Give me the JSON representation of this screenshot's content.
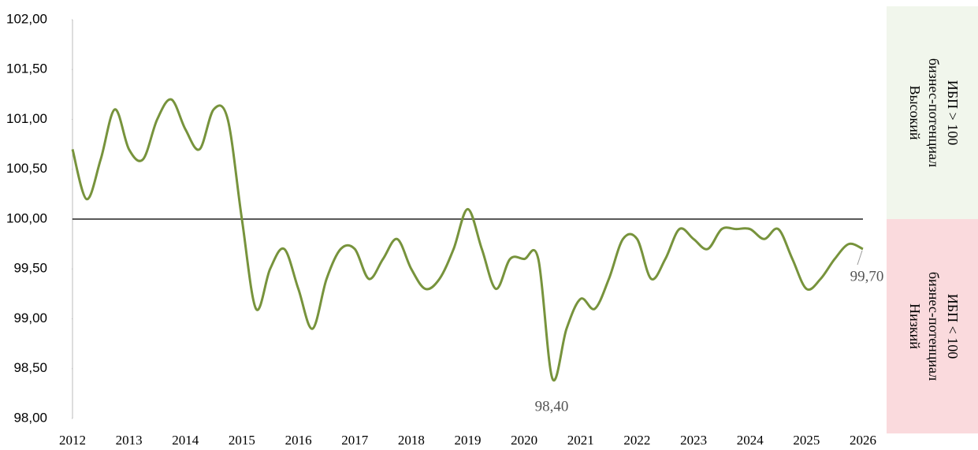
{
  "chart_data": {
    "type": "line",
    "x": [
      2012,
      2012.25,
      2012.5,
      2012.75,
      2013,
      2013.25,
      2013.5,
      2013.75,
      2014,
      2014.25,
      2014.5,
      2014.75,
      2015,
      2015.25,
      2015.5,
      2015.75,
      2016,
      2016.25,
      2016.5,
      2016.75,
      2017,
      2017.25,
      2017.5,
      2017.75,
      2018,
      2018.25,
      2018.5,
      2018.75,
      2019,
      2019.25,
      2019.5,
      2019.75,
      2020,
      2020.25,
      2020.5,
      2020.75,
      2021,
      2021.25,
      2021.5,
      2021.75,
      2022,
      2022.25,
      2022.5,
      2022.75,
      2023,
      2023.25,
      2023.5,
      2023.75,
      2024,
      2024.25,
      2024.5,
      2024.75,
      2025,
      2025.25,
      2025.5,
      2025.75,
      2026
    ],
    "values": [
      100.7,
      100.2,
      100.6,
      101.1,
      100.7,
      100.6,
      101.0,
      101.2,
      100.9,
      100.7,
      101.1,
      101.0,
      100.0,
      99.1,
      99.5,
      99.7,
      99.3,
      98.9,
      99.4,
      99.7,
      99.7,
      99.4,
      99.6,
      99.8,
      99.5,
      99.3,
      99.4,
      99.7,
      100.1,
      99.7,
      99.3,
      99.6,
      99.6,
      99.6,
      98.4,
      98.9,
      99.2,
      99.1,
      99.4,
      99.8,
      99.8,
      99.4,
      99.6,
      99.9,
      99.8,
      99.7,
      99.9,
      99.9,
      99.9,
      99.8,
      99.9,
      99.6,
      99.3,
      99.4,
      99.6,
      99.75,
      99.7
    ],
    "color": "#77933c",
    "xlim": [
      2012,
      2026
    ],
    "xticks": [
      2012,
      2013,
      2014,
      2015,
      2016,
      2017,
      2018,
      2019,
      2020,
      2021,
      2022,
      2023,
      2024,
      2025,
      2026
    ],
    "ylim": [
      98,
      102
    ],
    "yticks": [
      {
        "value": 98,
        "label": "98,00"
      },
      {
        "value": 98.5,
        "label": "98,50"
      },
      {
        "value": 99,
        "label": "99,00"
      },
      {
        "value": 99.5,
        "label": "99,50"
      },
      {
        "value": 100,
        "label": "100,00"
      },
      {
        "value": 100.5,
        "label": "100,50"
      },
      {
        "value": 101,
        "label": "101,00"
      },
      {
        "value": 101.5,
        "label": "101,50"
      },
      {
        "value": 102,
        "label": "102,00"
      }
    ],
    "reference_line": 100,
    "annotations": [
      "98,40",
      "99,70"
    ],
    "zones": [
      {
        "lines": [
          "Высокий",
          "бизнес-потенциал",
          "ИБП > 100"
        ],
        "color": "#f1f6ec"
      },
      {
        "lines": [
          "Низкий",
          "бизнес-потенциал",
          "ИБП < 100"
        ],
        "color": "#fadadd"
      }
    ]
  }
}
